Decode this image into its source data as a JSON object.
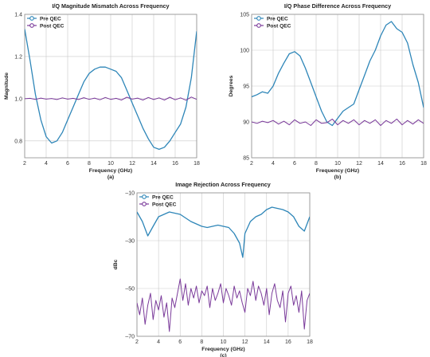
{
  "colors": {
    "pre": "#2e86b8",
    "post": "#7a3a9a",
    "grid": "#c9c9c9",
    "frame": "#8c8c8c"
  },
  "chart_data": [
    {
      "type": "line",
      "title": "I/Q Magnitude Mismatch Across Frequency",
      "xlabel": "Frequency (GHz)",
      "ylabel": "Magnitude",
      "caption": "(a)",
      "xlim": [
        2,
        18
      ],
      "ylim": [
        0.72,
        1.4
      ],
      "xticks": [
        2,
        4,
        6,
        8,
        10,
        12,
        14,
        16,
        18
      ],
      "yticks": [
        0.8,
        1.0,
        1.2,
        1.4
      ],
      "ytick_labels": [
        "0.8",
        "1.0",
        "1.2",
        "1.4"
      ],
      "grid": true,
      "legend": "top-left",
      "series": [
        {
          "name": "Pre QEC",
          "x": [
            2,
            2.5,
            3,
            3.5,
            4,
            4.5,
            5,
            5.5,
            6,
            6.5,
            7,
            7.5,
            8,
            8.5,
            9,
            9.5,
            10,
            10.5,
            11,
            11.5,
            12,
            12.5,
            13,
            13.5,
            14,
            14.5,
            15,
            15.5,
            16,
            16.5,
            17,
            17.5,
            18
          ],
          "values": [
            1.33,
            1.18,
            1.02,
            0.9,
            0.82,
            0.79,
            0.8,
            0.84,
            0.9,
            0.96,
            1.02,
            1.08,
            1.12,
            1.14,
            1.15,
            1.15,
            1.14,
            1.13,
            1.1,
            1.04,
            0.98,
            0.92,
            0.86,
            0.81,
            0.77,
            0.76,
            0.77,
            0.8,
            0.84,
            0.88,
            0.96,
            1.1,
            1.32
          ]
        },
        {
          "name": "Post QEC",
          "x": [
            2,
            2.5,
            3,
            3.5,
            4,
            4.5,
            5,
            5.5,
            6,
            6.5,
            7,
            7.5,
            8,
            8.5,
            9,
            9.5,
            10,
            10.5,
            11,
            11.5,
            12,
            12.5,
            13,
            13.5,
            14,
            14.5,
            15,
            15.5,
            16,
            16.5,
            17,
            17.5,
            18
          ],
          "values": [
            1.0,
            1.002,
            0.997,
            1.003,
            0.998,
            1.001,
            0.996,
            1.004,
            0.998,
            1.002,
            0.996,
            1.005,
            0.997,
            1.003,
            0.995,
            1.006,
            0.997,
            1.002,
            0.994,
            1.007,
            0.998,
            1.003,
            0.994,
            1.006,
            0.996,
            1.004,
            0.994,
            1.007,
            0.995,
            1.004,
            0.993,
            1.008,
            0.997
          ]
        }
      ]
    },
    {
      "type": "line",
      "title": "I/Q Phase Difference Across Frequency",
      "xlabel": "Frequency (GHz)",
      "ylabel": "Degrees",
      "caption": "(b)",
      "xlim": [
        2,
        18
      ],
      "ylim": [
        85,
        105
      ],
      "xticks": [
        2,
        4,
        6,
        8,
        10,
        12,
        14,
        16,
        18
      ],
      "yticks": [
        85,
        90,
        95,
        100,
        105
      ],
      "ytick_labels": [
        "85",
        "90",
        "95",
        "100",
        "105"
      ],
      "grid": true,
      "legend": "top-left",
      "series": [
        {
          "name": "Pre QEC",
          "x": [
            2,
            2.5,
            3,
            3.5,
            4,
            4.5,
            5,
            5.5,
            6,
            6.5,
            7,
            7.5,
            8,
            8.5,
            9,
            9.5,
            10,
            10.5,
            11,
            11.5,
            12,
            12.5,
            13,
            13.5,
            14,
            14.5,
            15,
            15.5,
            16,
            16.5,
            17,
            17.5,
            18
          ],
          "values": [
            93.5,
            93.8,
            94.2,
            94.0,
            95.0,
            96.8,
            98.2,
            99.5,
            99.8,
            99.2,
            97.5,
            95.5,
            93.5,
            91.5,
            90.0,
            89.5,
            90.5,
            91.5,
            92.0,
            92.5,
            94.5,
            96.5,
            98.5,
            100.0,
            102.0,
            103.5,
            104.0,
            103.0,
            102.5,
            101.0,
            98.0,
            95.5,
            92.0
          ]
        },
        {
          "name": "Post QEC",
          "x": [
            2,
            2.5,
            3,
            3.5,
            4,
            4.5,
            5,
            5.5,
            6,
            6.5,
            7,
            7.5,
            8,
            8.5,
            9,
            9.5,
            10,
            10.5,
            11,
            11.5,
            12,
            12.5,
            13,
            13.5,
            14,
            14.5,
            15,
            15.5,
            16,
            16.5,
            17,
            17.5,
            18
          ],
          "values": [
            90.0,
            89.8,
            90.1,
            89.9,
            90.2,
            89.7,
            90.1,
            89.6,
            90.3,
            89.8,
            90.0,
            89.5,
            90.3,
            89.8,
            89.9,
            90.4,
            89.6,
            90.2,
            89.8,
            90.3,
            89.6,
            90.2,
            89.8,
            90.3,
            89.5,
            90.2,
            89.8,
            90.4,
            89.6,
            90.2,
            89.7,
            90.3,
            89.8
          ]
        }
      ]
    },
    {
      "type": "line",
      "title": "Image Rejection Across Frequency",
      "xlabel": "Frequency (GHz)",
      "ylabel": "dBc",
      "caption": "(c)",
      "xlim": [
        2,
        18
      ],
      "ylim": [
        -70,
        -10
      ],
      "xticks": [
        2,
        4,
        6,
        8,
        10,
        12,
        14,
        16,
        18
      ],
      "yticks": [
        -70,
        -50,
        -30,
        -10
      ],
      "ytick_labels": [
        "–70",
        "–50",
        "–30",
        "–10"
      ],
      "grid": true,
      "legend": "top-left",
      "series": [
        {
          "name": "Pre QEC",
          "x": [
            2,
            2.5,
            3,
            3.5,
            4,
            4.5,
            5,
            5.5,
            6,
            6.5,
            7,
            7.5,
            8,
            8.5,
            9,
            9.5,
            10,
            10.5,
            11,
            11.5,
            11.8,
            12,
            12.5,
            13,
            13.5,
            14,
            14.5,
            15,
            15.5,
            16,
            16.5,
            17,
            17.5,
            18
          ],
          "values": [
            -18,
            -22,
            -28,
            -24,
            -20,
            -19,
            -18,
            -18.5,
            -19,
            -20.5,
            -22,
            -23,
            -24,
            -24.5,
            -24,
            -23.5,
            -24,
            -24.5,
            -27,
            -31,
            -37,
            -27,
            -22,
            -20,
            -19,
            -17,
            -16,
            -16.5,
            -17,
            -18,
            -20,
            -24,
            -26,
            -20
          ]
        },
        {
          "name": "Post QEC",
          "x": [
            2,
            2.25,
            2.5,
            2.75,
            3,
            3.25,
            3.5,
            3.75,
            4,
            4.25,
            4.5,
            4.75,
            5,
            5.25,
            5.5,
            5.75,
            6,
            6.25,
            6.5,
            6.75,
            7,
            7.25,
            7.5,
            7.75,
            8,
            8.25,
            8.5,
            8.75,
            9,
            9.25,
            9.5,
            9.75,
            10,
            10.25,
            10.5,
            10.75,
            11,
            11.25,
            11.5,
            11.75,
            12,
            12.25,
            12.5,
            12.75,
            13,
            13.25,
            13.5,
            13.75,
            14,
            14.25,
            14.5,
            14.75,
            15,
            15.25,
            15.5,
            15.75,
            16,
            16.25,
            16.5,
            16.75,
            17,
            17.25,
            17.5,
            17.75,
            18
          ],
          "values": [
            -56,
            -61,
            -54,
            -65,
            -57,
            -52,
            -63,
            -55,
            -59,
            -53,
            -62,
            -56,
            -68,
            -54,
            -58,
            -52,
            -46,
            -55,
            -48,
            -57,
            -50,
            -54,
            -49,
            -56,
            -51,
            -53,
            -49,
            -58,
            -50,
            -55,
            -52,
            -48,
            -56,
            -50,
            -53,
            -57,
            -49,
            -54,
            -51,
            -56,
            -60,
            -50,
            -53,
            -47,
            -55,
            -49,
            -52,
            -57,
            -50,
            -61,
            -52,
            -48,
            -55,
            -58,
            -51,
            -64,
            -52,
            -49,
            -57,
            -53,
            -60,
            -51,
            -67,
            -55,
            -52
          ]
        }
      ]
    }
  ]
}
